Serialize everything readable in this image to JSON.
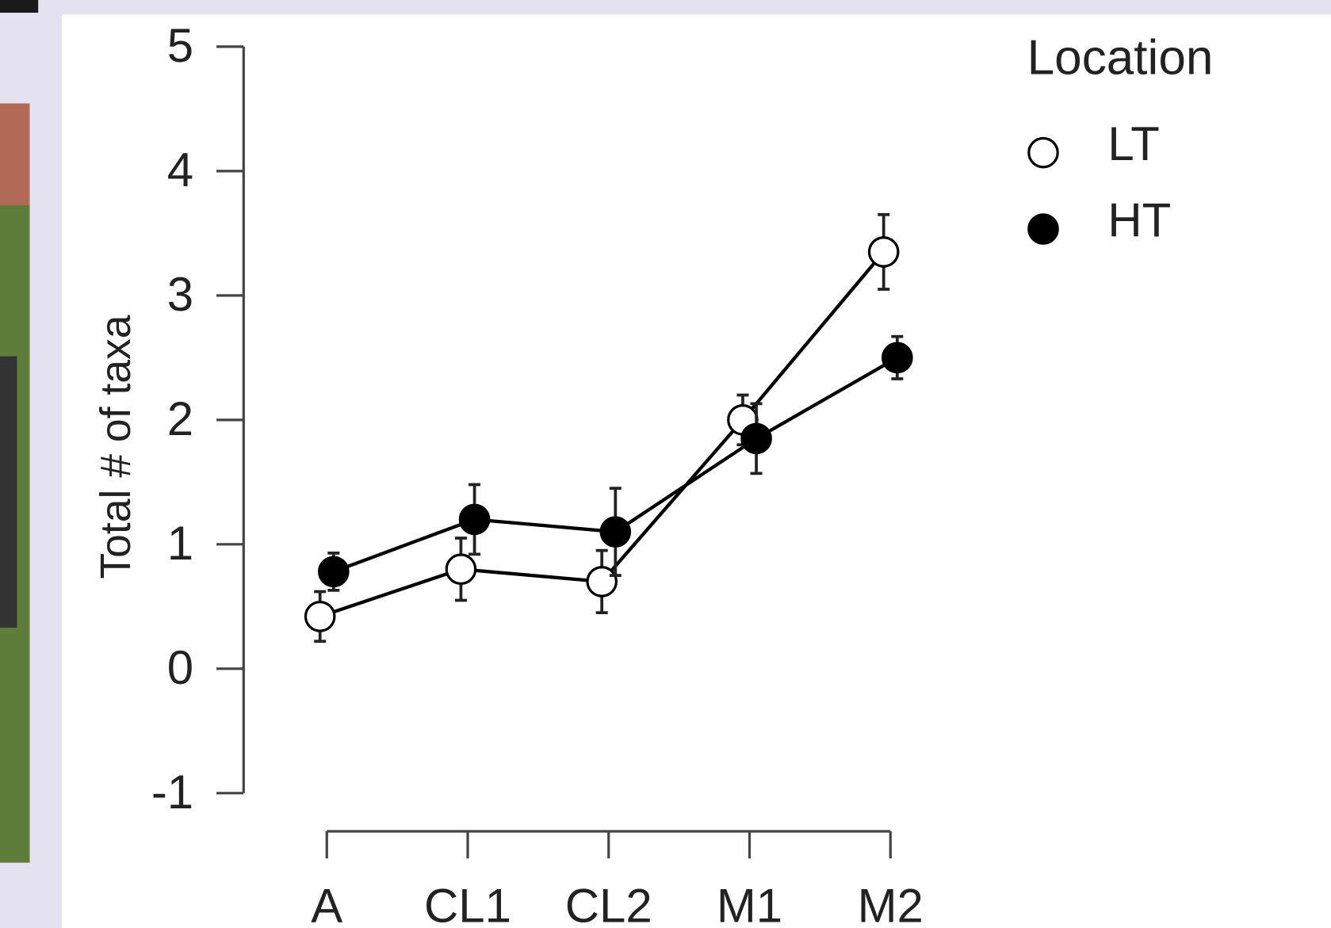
{
  "chart_data": {
    "type": "line",
    "y_label": "Total # of taxa",
    "legend_title": "Location",
    "categories": [
      "A",
      "CL1",
      "CL2",
      "M1",
      "M2"
    ],
    "series": [
      {
        "name": "LT",
        "color": "#ffffff",
        "values": [
          0.42,
          0.8,
          0.7,
          2.0,
          3.35
        ],
        "errors": [
          0.2,
          0.25,
          0.25,
          0.2,
          0.3
        ]
      },
      {
        "name": "HT",
        "color": "#000000",
        "values": [
          0.78,
          1.2,
          1.1,
          1.85,
          2.5
        ],
        "errors": [
          0.15,
          0.28,
          0.35,
          0.28,
          0.17
        ]
      }
    ],
    "ylim": [
      -1,
      5
    ],
    "yticks": [
      -1,
      0,
      1,
      2,
      3,
      4,
      5
    ],
    "grid": false,
    "legend": "top-right"
  }
}
